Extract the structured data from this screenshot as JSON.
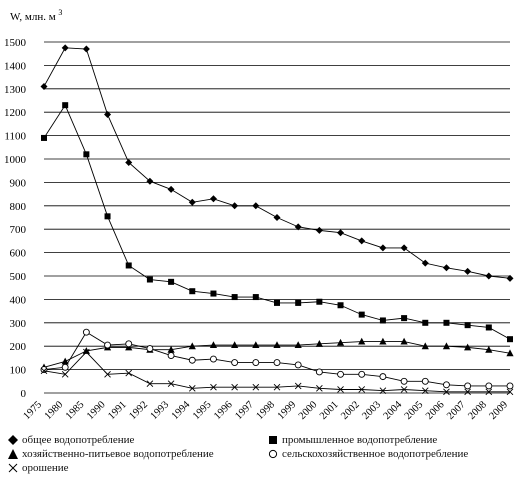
{
  "chart_data": {
    "type": "line",
    "ylabel": "W, млн. м",
    "ylabel_sup": "3",
    "ylim": [
      0,
      1500
    ],
    "yticks": [
      0,
      100,
      200,
      300,
      400,
      500,
      600,
      700,
      800,
      900,
      1000,
      1100,
      1200,
      1300,
      1400,
      1500
    ],
    "categories": [
      "1975",
      "1980",
      "1985",
      "1990",
      "1991",
      "1992",
      "1993",
      "1994",
      "1995",
      "1996",
      "1997",
      "1998",
      "1999",
      "2000",
      "2001",
      "2002",
      "2003",
      "2004",
      "2005",
      "2006",
      "2007",
      "2008",
      "2009"
    ],
    "grid": "horizontal",
    "legend_position": "bottom",
    "series": [
      {
        "name": "общее водопотребление",
        "marker": "diamond",
        "values": [
          1310,
          1475,
          1470,
          1190,
          985,
          905,
          870,
          815,
          830,
          800,
          800,
          750,
          710,
          695,
          685,
          650,
          620,
          620,
          555,
          535,
          520,
          500,
          490
        ]
      },
      {
        "name": "промышленное водопотребление",
        "marker": "square",
        "values": [
          1090,
          1230,
          1020,
          755,
          545,
          485,
          475,
          435,
          425,
          410,
          410,
          385,
          385,
          390,
          375,
          335,
          310,
          320,
          300,
          300,
          290,
          280,
          230
        ]
      },
      {
        "name": "хозяйственно-питьевое водопотребление",
        "marker": "triangle",
        "values": [
          110,
          135,
          180,
          195,
          195,
          185,
          185,
          200,
          205,
          205,
          205,
          205,
          205,
          210,
          215,
          220,
          220,
          220,
          200,
          200,
          195,
          185,
          170
        ]
      },
      {
        "name": "сельскохозяйственное водопотребление",
        "marker": "circle",
        "values": [
          100,
          110,
          260,
          205,
          210,
          190,
          160,
          140,
          145,
          130,
          130,
          130,
          120,
          90,
          80,
          80,
          70,
          50,
          50,
          35,
          30,
          30,
          30
        ]
      },
      {
        "name": "орошение",
        "marker": "asterisk",
        "values": [
          95,
          80,
          175,
          80,
          85,
          40,
          40,
          20,
          25,
          25,
          25,
          25,
          30,
          20,
          15,
          15,
          10,
          15,
          10,
          5,
          5,
          5,
          5
        ]
      }
    ]
  }
}
